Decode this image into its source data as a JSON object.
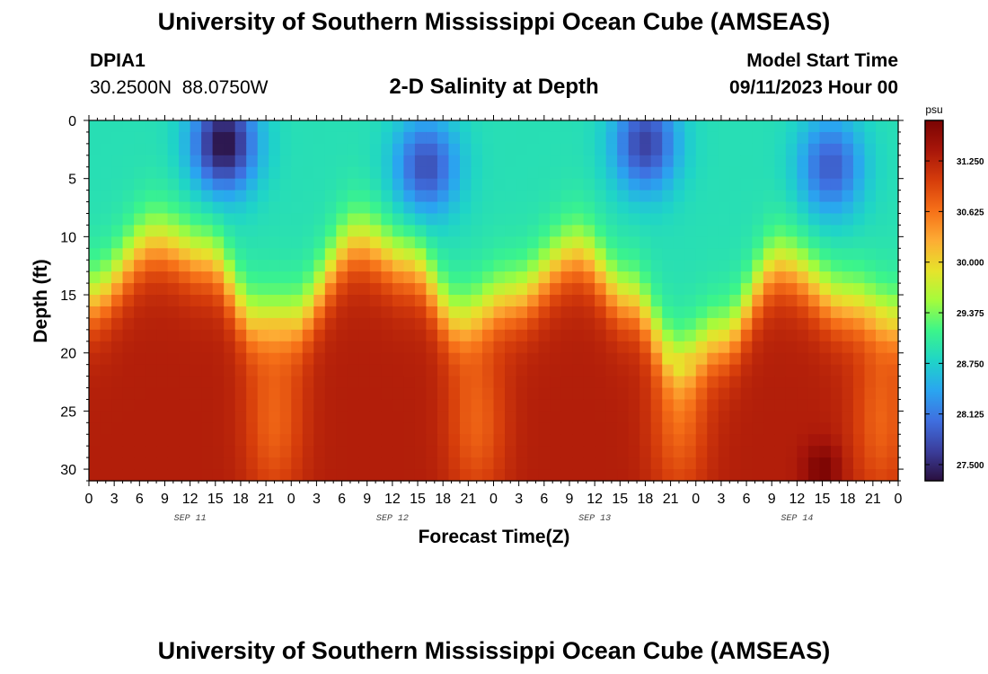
{
  "page": {
    "title": "University of Southern Mississippi Ocean Cube (AMSEAS)",
    "bottom_title": "University of Southern Mississippi Ocean Cube (AMSEAS)",
    "station_id": "DPIA1",
    "coordinates": "30.2500N  88.0750W",
    "subtitle": "2-D Salinity at Depth",
    "model_start_label": "Model Start Time",
    "model_start_value": "09/11/2023 Hour 00"
  },
  "chart_data": {
    "type": "heatmap",
    "title": "2-D Salinity at Depth",
    "xlabel": "Forecast Time(Z)",
    "ylabel": "Depth (ft)",
    "x_range_hours": [
      0,
      96
    ],
    "y_range_ft": [
      0,
      31
    ],
    "y_inverted": true,
    "y_ticks": [
      0,
      5,
      10,
      15,
      20,
      25,
      30
    ],
    "x_tick_labels": [
      "0",
      "3",
      "6",
      "9",
      "12",
      "15",
      "18",
      "21",
      "0",
      "3",
      "6",
      "9",
      "12",
      "15",
      "18",
      "21",
      "0",
      "3",
      "6",
      "9",
      "12",
      "15",
      "18",
      "21",
      "0",
      "3",
      "6",
      "9",
      "12",
      "15",
      "18",
      "21",
      "0"
    ],
    "day_labels": [
      {
        "hour": 12,
        "label": "SEP 11"
      },
      {
        "hour": 36,
        "label": "SEP 12"
      },
      {
        "hour": 60,
        "label": "SEP 13"
      },
      {
        "hour": 84,
        "label": "SEP 14"
      }
    ],
    "colorbar": {
      "unit": "psu",
      "min": 27.3,
      "max": 31.75,
      "ticks": [
        27.5,
        28.125,
        28.75,
        29.375,
        30.0,
        30.625,
        31.25
      ],
      "tick_labels": [
        "27.500",
        "28.125",
        "28.750",
        "29.375",
        "30.000",
        "30.625",
        "31.250"
      ],
      "colors": [
        "#2a0f3e",
        "#3b3e9c",
        "#3f6fe0",
        "#2aa5f0",
        "#1fd4c8",
        "#3cf58a",
        "#a4fc3c",
        "#e6e32b",
        "#fdac34",
        "#f67018",
        "#d63d0b",
        "#a8160a",
        "#7a0403"
      ]
    },
    "halocline_depth_ft": [
      {
        "hour": 0,
        "depth": 15.5
      },
      {
        "hour": 8,
        "depth": 10.5
      },
      {
        "hour": 14,
        "depth": 12.0
      },
      {
        "hour": 20,
        "depth": 17.5
      },
      {
        "hour": 24,
        "depth": 17.5
      },
      {
        "hour": 32,
        "depth": 10.5
      },
      {
        "hour": 38,
        "depth": 12.5
      },
      {
        "hour": 44,
        "depth": 17.5
      },
      {
        "hour": 50,
        "depth": 15.5
      },
      {
        "hour": 58,
        "depth": 11.5
      },
      {
        "hour": 64,
        "depth": 15.5
      },
      {
        "hour": 70,
        "depth": 21.0
      },
      {
        "hour": 75,
        "depth": 19.0
      },
      {
        "hour": 82,
        "depth": 12.5
      },
      {
        "hour": 90,
        "depth": 16.0
      },
      {
        "hour": 96,
        "depth": 17.5
      }
    ],
    "surface_min_events": [
      {
        "hour": 16,
        "depth": 2,
        "salinity": 27.3
      },
      {
        "hour": 40,
        "depth": 4,
        "salinity": 27.8
      },
      {
        "hour": 66,
        "depth": 2,
        "salinity": 27.7
      },
      {
        "hour": 88,
        "depth": 4,
        "salinity": 27.9
      }
    ],
    "deep_low_event": {
      "hour": 87,
      "depth": 30,
      "salinity": 31.75
    },
    "mid_depth_dip_hours": [
      22,
      46,
      70,
      94
    ]
  }
}
